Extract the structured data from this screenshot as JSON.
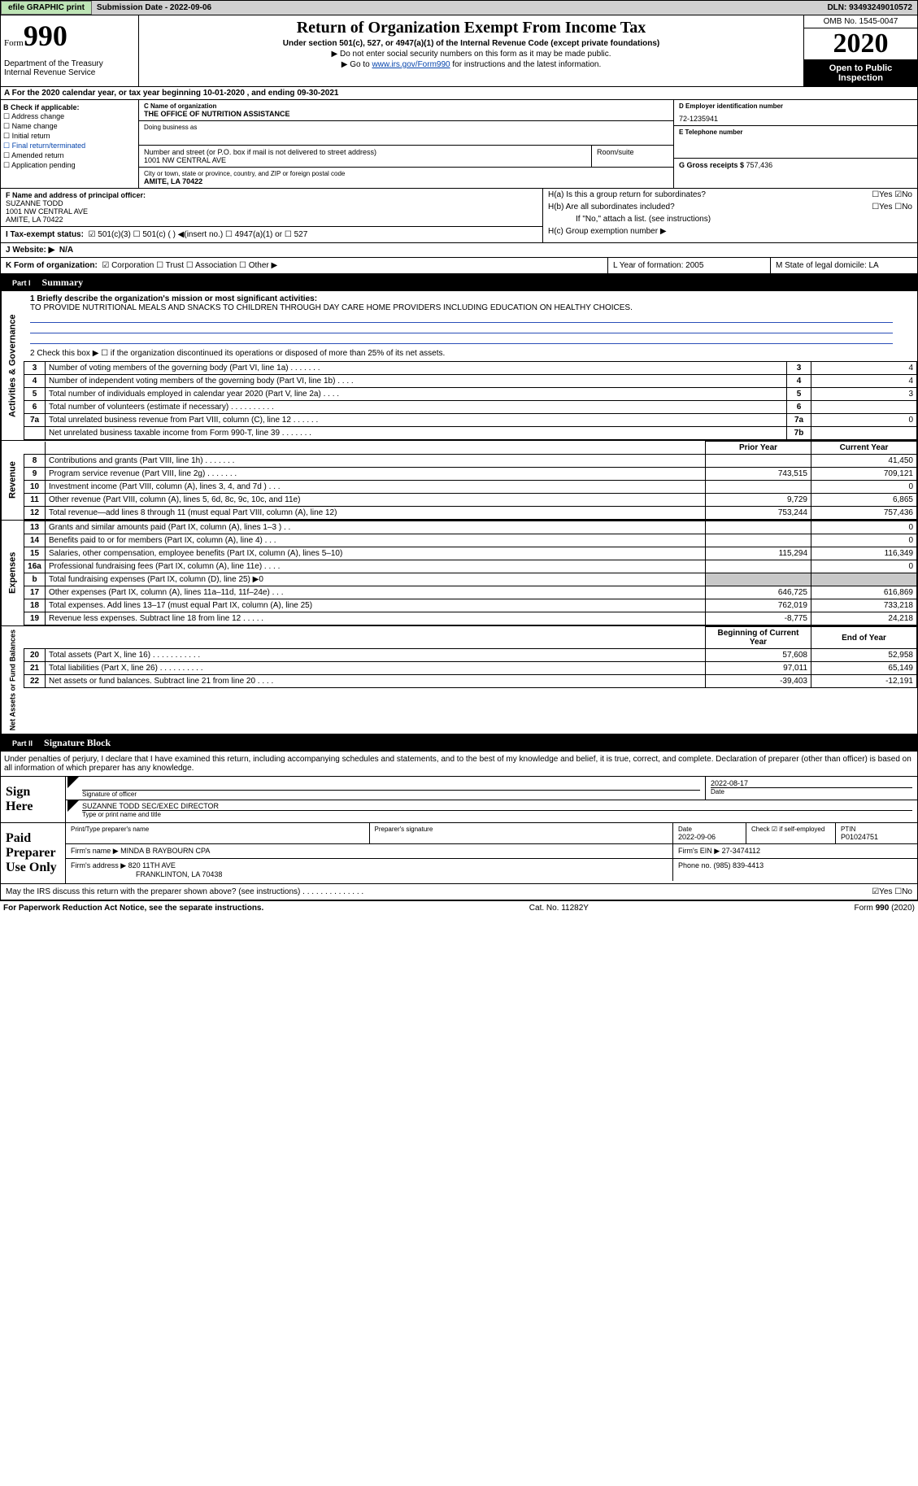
{
  "topbar": {
    "efile": "efile GRAPHIC print",
    "submission_lbl": "Submission Date - ",
    "submission_date": "2022-09-06",
    "dln_lbl": "DLN: ",
    "dln": "93493249010572"
  },
  "header": {
    "form_word": "Form",
    "form_number": "990",
    "dept": "Department of the Treasury\nInternal Revenue Service",
    "title": "Return of Organization Exempt From Income Tax",
    "subtitle": "Under section 501(c), 527, or 4947(a)(1) of the Internal Revenue Code (except private foundations)",
    "note1": "▶ Do not enter social security numbers on this form as it may be made public.",
    "note2_pre": "▶ Go to ",
    "note2_link": "www.irs.gov/Form990",
    "note2_post": " for instructions and the latest information.",
    "omb": "OMB No. 1545-0047",
    "year": "2020",
    "open": "Open to Public Inspection"
  },
  "lineA": "A  For the 2020 calendar year, or tax year beginning 10-01-2020    , and ending 09-30-2021",
  "checkB": {
    "hdr": "B Check if applicable:",
    "addr": "☐ Address change",
    "name": "☐ Name change",
    "init": "☐ Initial return",
    "final": "☐ Final return/terminated",
    "amend": "☐ Amended return",
    "app": "☐ Application pending"
  },
  "org": {
    "c_lbl": "C Name of organization",
    "name": "THE OFFICE OF NUTRITION ASSISTANCE",
    "dba_lbl": "Doing business as",
    "street_lbl": "Number and street (or P.O. box if mail is not delivered to street address)",
    "street": "1001 NW CENTRAL AVE",
    "room_lbl": "Room/suite",
    "city_lbl": "City or town, state or province, country, and ZIP or foreign postal code",
    "city": "AMITE, LA   70422"
  },
  "right": {
    "d_lbl": "D Employer identification number",
    "ein": "72-1235941",
    "e_lbl": "E Telephone number",
    "g_lbl": "G Gross receipts $ ",
    "g_val": "757,436"
  },
  "officer": {
    "f_lbl": "F Name and address of principal officer:",
    "name": "SUZANNE TODD",
    "street": "1001 NW CENTRAL AVE",
    "city": "AMITE, LA   70422"
  },
  "h": {
    "a_lbl": "H(a)  Is this a group return for subordinates?",
    "a_val": "☐Yes ☑No",
    "b_lbl": "H(b)  Are all subordinates included?",
    "b_val": "☐Yes ☐No",
    "b_note": "If \"No,\" attach a list. (see instructions)",
    "c_lbl": "H(c)  Group exemption number ▶"
  },
  "taxstatus": {
    "lbl": "I    Tax-exempt status:",
    "opts": "☑ 501(c)(3)    ☐ 501(c) (  ) ◀(insert no.)    ☐ 4947(a)(1) or   ☐ 527"
  },
  "website": {
    "lbl": "J   Website: ▶",
    "val": "N/A"
  },
  "k": {
    "lbl": "K Form of organization:",
    "opts": "☑ Corporation  ☐ Trust  ☐ Association  ☐ Other ▶"
  },
  "lm": {
    "l": "L Year of formation: 2005",
    "m": "M State of legal domicile: LA"
  },
  "part1": {
    "num": "Part I",
    "title": "Summary"
  },
  "summary": {
    "q1_lbl": "1  Briefly describe the organization's mission or most significant activities:",
    "q1_text": "TO PROVIDE NUTRITIONAL MEALS AND SNACKS TO CHILDREN THROUGH DAY CARE HOME PROVIDERS INCLUDING EDUCATION ON HEALTHY CHOICES.",
    "q2": "2   Check this box ▶ ☐  if the organization discontinued its operations or disposed of more than 25% of its net assets.",
    "rows_gov": [
      {
        "n": "3",
        "d": "Number of voting members of the governing body (Part VI, line 1a)   .    .    .    .    .    .    .",
        "b": "3",
        "v": "4"
      },
      {
        "n": "4",
        "d": "Number of independent voting members of the governing body (Part VI, line 1b)   .    .    .    .",
        "b": "4",
        "v": "4"
      },
      {
        "n": "5",
        "d": "Total number of individuals employed in calendar year 2020 (Part V, line 2a)   .    .    .    .",
        "b": "5",
        "v": "3"
      },
      {
        "n": "6",
        "d": "Total number of volunteers (estimate if necessary)   .    .    .    .    .    .    .    .    .    .",
        "b": "6",
        "v": ""
      },
      {
        "n": "7a",
        "d": "Total unrelated business revenue from Part VIII, column (C), line 12   .    .    .    .    .    .",
        "b": "7a",
        "v": "0"
      },
      {
        "n": "",
        "d": "Net unrelated business taxable income from Form 990-T, line 39   .    .    .    .    .    .    .",
        "b": "7b",
        "v": ""
      }
    ],
    "col_prior": "Prior Year",
    "col_curr": "Current Year",
    "rows_rev": [
      {
        "n": "8",
        "d": "Contributions and grants (Part VIII, line 1h)   .    .    .    .    .    .    .",
        "p": "",
        "c": "41,450"
      },
      {
        "n": "9",
        "d": "Program service revenue (Part VIII, line 2g)   .    .    .    .    .    .    .",
        "p": "743,515",
        "c": "709,121"
      },
      {
        "n": "10",
        "d": "Investment income (Part VIII, column (A), lines 3, 4, and 7d )   .    .    .",
        "p": "",
        "c": "0"
      },
      {
        "n": "11",
        "d": "Other revenue (Part VIII, column (A), lines 5, 6d, 8c, 9c, 10c, and 11e)",
        "p": "9,729",
        "c": "6,865"
      },
      {
        "n": "12",
        "d": "Total revenue—add lines 8 through 11 (must equal Part VIII, column (A), line 12)",
        "p": "753,244",
        "c": "757,436"
      }
    ],
    "rows_exp": [
      {
        "n": "13",
        "d": "Grants and similar amounts paid (Part IX, column (A), lines 1–3 )   .    .",
        "p": "",
        "c": "0"
      },
      {
        "n": "14",
        "d": "Benefits paid to or for members (Part IX, column (A), line 4)   .    .    .",
        "p": "",
        "c": "0"
      },
      {
        "n": "15",
        "d": "Salaries, other compensation, employee benefits (Part IX, column (A), lines 5–10)",
        "p": "115,294",
        "c": "116,349"
      },
      {
        "n": "16a",
        "d": "Professional fundraising fees (Part IX, column (A), line 11e)   .    .    .    .",
        "p": "",
        "c": "0"
      },
      {
        "n": "b",
        "d": "Total fundraising expenses (Part IX, column (D), line 25) ▶0",
        "p": "SHADE",
        "c": "SHADE"
      },
      {
        "n": "17",
        "d": "Other expenses (Part IX, column (A), lines 11a–11d, 11f–24e)   .    .    .",
        "p": "646,725",
        "c": "616,869"
      },
      {
        "n": "18",
        "d": "Total expenses. Add lines 13–17 (must equal Part IX, column (A), line 25)",
        "p": "762,019",
        "c": "733,218"
      },
      {
        "n": "19",
        "d": "Revenue less expenses. Subtract line 18 from line 12   .    .    .    .    .",
        "p": "-8,775",
        "c": "24,218"
      }
    ],
    "col_beg": "Beginning of Current Year",
    "col_end": "End of Year",
    "rows_net": [
      {
        "n": "20",
        "d": "Total assets (Part X, line 16)   .    .    .    .    .    .    .    .    .    .    .",
        "p": "57,608",
        "c": "52,958"
      },
      {
        "n": "21",
        "d": "Total liabilities (Part X, line 26)   .    .    .    .    .    .    .    .    .    .",
        "p": "97,011",
        "c": "65,149"
      },
      {
        "n": "22",
        "d": "Net assets or fund balances. Subtract line 21 from line 20   .    .    .    .",
        "p": "-39,403",
        "c": "-12,191"
      }
    ]
  },
  "sides": {
    "gov": "Activities & Governance",
    "rev": "Revenue",
    "exp": "Expenses",
    "net": "Net Assets or Fund Balances"
  },
  "part2": {
    "num": "Part II",
    "title": "Signature Block"
  },
  "sig": {
    "intro": "Under penalties of perjury, I declare that I have examined this return, including accompanying schedules and statements, and to the best of my knowledge and belief, it is true, correct, and complete. Declaration of preparer (other than officer) is based on all information of which preparer has any knowledge.",
    "sign_here": "Sign Here",
    "sig_officer_lbl": "Signature of officer",
    "date_lbl": "Date",
    "sig_date": "2022-08-17",
    "name_title": "SUZANNE TODD  SEC/EXEC DIRECTOR",
    "name_title_lbl": "Type or print name and title",
    "paid": "Paid Preparer Use Only",
    "prep_name_lbl": "Print/Type preparer's name",
    "prep_sig_lbl": "Preparer's signature",
    "prep_date_lbl": "Date",
    "prep_date": "2022-09-06",
    "self_lbl": "Check ☑ if self-employed",
    "ptin_lbl": "PTIN",
    "ptin": "P01024751",
    "firm_name_lbl": "Firm's name    ▶ ",
    "firm_name": "MINDA B RAYBOURN CPA",
    "firm_ein_lbl": "Firm's EIN ▶ ",
    "firm_ein": "27-3474112",
    "firm_addr_lbl": "Firm's address ▶ ",
    "firm_addr": "820 11TH AVE",
    "firm_city": "FRANKLINTON, LA   70438",
    "phone_lbl": "Phone no. ",
    "phone": "(985) 839-4413",
    "discuss": "May the IRS discuss this return with the preparer shown above? (see instructions)   .    .    .    .    .    .    .    .    .    .    .    .    .    .",
    "discuss_val": "☑Yes  ☐No"
  },
  "footer": {
    "pra": "For Paperwork Reduction Act Notice, see the separate instructions.",
    "cat": "Cat. No. 11282Y",
    "form": "Form 990 (2020)"
  }
}
